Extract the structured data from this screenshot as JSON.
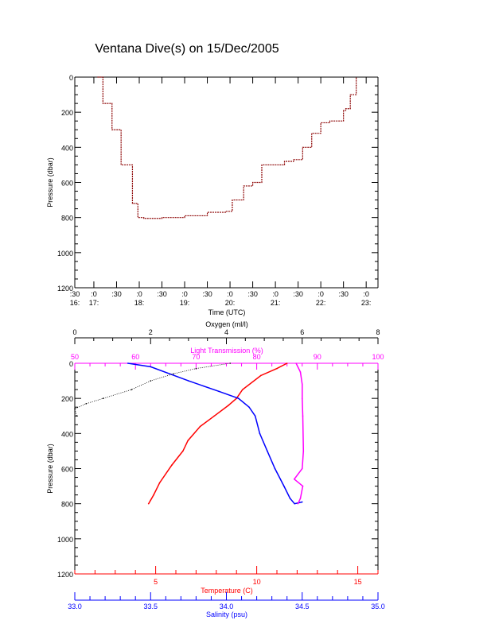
{
  "title": "Ventana Dive(s) on 15/Dec/2005",
  "colors": {
    "axis": "#000000",
    "temperature": "#ff0000",
    "salinity": "#0000ff",
    "light": "#ff00ff",
    "oxygen": "#000000",
    "profile": "#8b0000"
  },
  "chart_data": [
    {
      "type": "line",
      "title": "Ventana Dive(s) on 15/Dec/2005",
      "xlabel": "Time (UTC)",
      "ylabel": "Pressure (dbar)",
      "xlim": [
        16.58,
        23.26
      ],
      "ylim": [
        1200,
        0
      ],
      "yticks": [
        "0",
        "200",
        "400",
        "600",
        "800",
        "1000",
        "1200"
      ],
      "yticks_values": [
        0,
        200,
        400,
        600,
        800,
        1000,
        1200
      ],
      "xticks": [
        {
          "v": 16.5,
          "top": ":30",
          "bot": "16:"
        },
        {
          "v": 17,
          "top": ":0",
          "bot": "17:"
        },
        {
          "v": 17.5,
          "top": ":30",
          "bot": ""
        },
        {
          "v": 18,
          "top": ":0",
          "bot": "18:"
        },
        {
          "v": 18.5,
          "top": ":30",
          "bot": ""
        },
        {
          "v": 19,
          "top": ":0",
          "bot": "19:"
        },
        {
          "v": 19.5,
          "top": ":30",
          "bot": ""
        },
        {
          "v": 20,
          "top": ":0",
          "bot": "20:"
        },
        {
          "v": 20.5,
          "top": ":30",
          "bot": ""
        },
        {
          "v": 21,
          "top": ":0",
          "bot": "21:"
        },
        {
          "v": 21.5,
          "top": ":30",
          "bot": ""
        },
        {
          "v": 22,
          "top": ":0",
          "bot": "22:"
        },
        {
          "v": 22.5,
          "top": ":30",
          "bot": ""
        },
        {
          "v": 23,
          "top": ":0",
          "bot": "23:"
        }
      ],
      "series": [
        {
          "name": "Pressure",
          "x": [
            17.08,
            17.2,
            17.4,
            17.6,
            17.85,
            17.97,
            18.1,
            18.5,
            19.0,
            19.5,
            19.9,
            20.05,
            20.3,
            20.5,
            20.7,
            21.0,
            21.2,
            21.4,
            21.6,
            21.8,
            22.0,
            22.2,
            22.5,
            22.55,
            22.65,
            22.78
          ],
          "y": [
            0,
            150,
            300,
            500,
            720,
            800,
            805,
            800,
            790,
            770,
            765,
            700,
            620,
            600,
            500,
            500,
            480,
            470,
            400,
            320,
            260,
            250,
            190,
            180,
            100,
            0
          ]
        }
      ]
    },
    {
      "type": "line",
      "ylabel": "Pressure (dbar)",
      "ylim": [
        1200,
        0
      ],
      "yticks": [
        "0",
        "200",
        "400",
        "600",
        "800",
        "1000",
        "1200"
      ],
      "yticks_values": [
        0,
        200,
        400,
        600,
        800,
        1000,
        1200
      ],
      "axes": {
        "oxygen": {
          "label": "Oxygen (ml/l)",
          "lim": [
            0,
            8
          ],
          "ticks": [
            "0",
            "2",
            "4",
            "6",
            "8"
          ],
          "tick_values": [
            0,
            2,
            4,
            6,
            8
          ]
        },
        "light": {
          "label": "Light Transmission (%)",
          "lim": [
            50,
            100
          ],
          "ticks": [
            "50",
            "60",
            "70",
            "80",
            "90",
            "100"
          ],
          "tick_values": [
            50,
            60,
            70,
            80,
            90,
            100
          ]
        },
        "temperature": {
          "label": "Temperature (C)",
          "lim": [
            1,
            16
          ],
          "ticks": [
            "5",
            "10",
            "15"
          ],
          "tick_values": [
            5,
            10,
            15
          ]
        },
        "salinity": {
          "label": "Salinity (psu)",
          "lim": [
            33,
            35
          ],
          "ticks": [
            "33.0",
            "33.5",
            "34.0",
            "34.5",
            "35.0"
          ],
          "tick_values": [
            33,
            33.5,
            34,
            34.5,
            35
          ]
        }
      },
      "series": [
        {
          "name": "Temperature",
          "axis": "temperature",
          "x": [
            11.5,
            11.0,
            10.2,
            9.3,
            9.0,
            8.6,
            7.9,
            7.2,
            6.6,
            6.35,
            5.8,
            5.2,
            4.9,
            4.75,
            4.65
          ],
          "y": [
            0,
            30,
            70,
            150,
            200,
            240,
            300,
            360,
            440,
            500,
            580,
            680,
            750,
            780,
            800
          ]
        },
        {
          "name": "Salinity",
          "axis": "salinity",
          "x": [
            33.35,
            33.5,
            33.75,
            33.95,
            34.08,
            34.15,
            34.19,
            34.22,
            34.27,
            34.32,
            34.38,
            34.42,
            34.45,
            34.5
          ],
          "y": [
            0,
            20,
            100,
            160,
            200,
            250,
            300,
            400,
            500,
            600,
            700,
            770,
            800,
            790
          ]
        },
        {
          "name": "Light Transmission",
          "axis": "light",
          "x": [
            86.5,
            87.2,
            87.5,
            87.5,
            87.6,
            87.7,
            87.5,
            86.2,
            87.6,
            87.2,
            86.8
          ],
          "y": [
            0,
            50,
            120,
            200,
            300,
            500,
            600,
            660,
            700,
            770,
            800
          ]
        },
        {
          "name": "Oxygen",
          "axis": "oxygen",
          "x": [
            4.1,
            3.2,
            2.6,
            2.0,
            1.5,
            0.75,
            0.3,
            0.0,
            0.05
          ],
          "y": [
            0,
            30,
            60,
            100,
            150,
            200,
            230,
            260,
            300
          ]
        }
      ]
    }
  ]
}
